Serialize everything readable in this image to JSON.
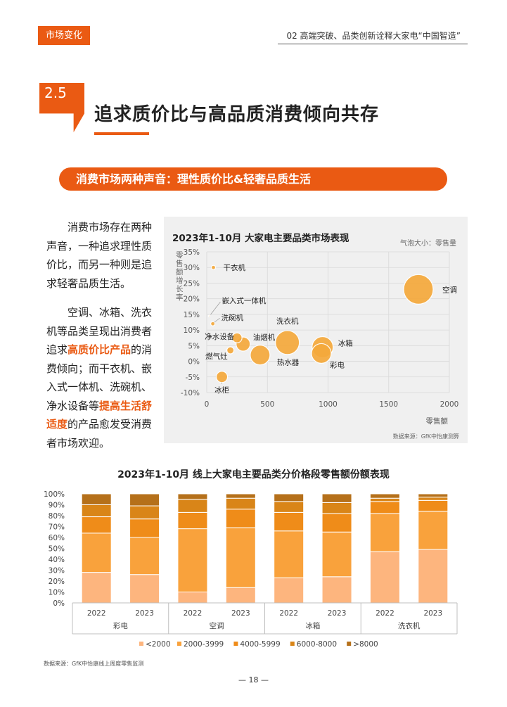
{
  "header": {
    "tag": "市场变化",
    "title": "02 高端突破、品类创新诠释大家电“中国智造”"
  },
  "section": {
    "number": "2.5",
    "title": "追求质价比与高品质消费倾向共存"
  },
  "banner": "消费市场两种声音：理性质价比&轻奢品质生活",
  "body": {
    "p1": "消费市场存在两种声音，一种追求理性质价比，而另一种则是追求轻奢品质生活。",
    "p2_a": "空调、冰箱、洗衣机等品类呈现出消费者追求",
    "p2_hl1": "高质价比产品",
    "p2_b": "的消费倾向；而干衣机、嵌入式一体机、洗碗机、净水设备等",
    "p2_hl2": "提高生活舒适度",
    "p2_c": "的产品愈发受消费者市场欢迎。"
  },
  "colors": {
    "accent": "#ea5a13",
    "bubble": "#f5a93b",
    "bar": [
      "#fdb57e",
      "#f9a23c",
      "#ef8c19",
      "#d98518",
      "#b5701a"
    ]
  },
  "chart_data": [
    {
      "type": "scatter",
      "title": "2023年1-10月 大家电主要品类市场表现",
      "legend_note": "气泡大小：零售量",
      "xlabel": "零售额",
      "ylabel": "零售额增长率",
      "xlim": [
        0,
        2000
      ],
      "ylim": [
        -10,
        35
      ],
      "x_ticks": [
        "0",
        "500",
        "1000",
        "1500",
        "2000"
      ],
      "y_ticks": [
        "-10%",
        "-5%",
        "0%",
        "5%",
        "10%",
        "15%",
        "20%",
        "25%",
        "30%",
        "35%"
      ],
      "grid": true,
      "points": [
        {
          "name": "干衣机",
          "x": 55,
          "y": 30,
          "size": 3
        },
        {
          "name": "嵌入式一体机",
          "x": 20,
          "y": 14.5,
          "size": 1
        },
        {
          "name": "洗碗机",
          "x": 50,
          "y": 12,
          "size": 3
        },
        {
          "name": "净水设备",
          "x": 250,
          "y": 7.5,
          "size": 7
        },
        {
          "name": "燃气灶",
          "x": 195,
          "y": 3.5,
          "size": 5
        },
        {
          "name": "油烟机",
          "x": 300,
          "y": 5.5,
          "size": 10
        },
        {
          "name": "洗衣机",
          "x": 665,
          "y": 6,
          "size": 17
        },
        {
          "name": "冰柜",
          "x": 125,
          "y": -5,
          "size": 8
        },
        {
          "name": "热水器",
          "x": 440,
          "y": 2,
          "size": 14
        },
        {
          "name": "彩电",
          "x": 945,
          "y": 2.5,
          "size": 14
        },
        {
          "name": "冰箱",
          "x": 955,
          "y": 4.5,
          "size": 15
        },
        {
          "name": "空调",
          "x": 1745,
          "y": 23,
          "size": 21
        }
      ],
      "source": "数据来源：GfK中怡康测算"
    },
    {
      "type": "bar",
      "stacked": true,
      "title": "2023年1-10月 线上大家电主要品类分价格段零售额份额表现",
      "y_ticks": [
        "0%",
        "10%",
        "20%",
        "30%",
        "40%",
        "50%",
        "60%",
        "70%",
        "80%",
        "90%",
        "100%"
      ],
      "ylim": [
        0,
        100
      ],
      "groups": [
        "彩电",
        "空调",
        "冰箱",
        "洗衣机"
      ],
      "years": [
        "2022",
        "2023"
      ],
      "categories": [
        "2022",
        "2023",
        "2022",
        "2023",
        "2022",
        "2023",
        "2022",
        "2023"
      ],
      "series": [
        {
          "name": "<2000",
          "values": [
            28,
            26,
            10,
            14,
            23,
            24,
            47,
            49
          ]
        },
        {
          "name": "2000-3999",
          "values": [
            36,
            34,
            58,
            55,
            43,
            41,
            35,
            35
          ]
        },
        {
          "name": "4000-5999",
          "values": [
            15,
            17,
            15,
            17,
            17,
            17,
            11,
            10
          ]
        },
        {
          "name": "6000-8000",
          "values": [
            11,
            12,
            12,
            10,
            10,
            10,
            3,
            3
          ]
        },
        {
          "name": ">8000",
          "values": [
            10,
            11,
            5,
            4,
            7,
            8,
            4,
            3
          ]
        }
      ]
    }
  ],
  "footer": {
    "source": "数据来源：GfK中怡康线上周度零售监测",
    "page": "— 18 —"
  }
}
